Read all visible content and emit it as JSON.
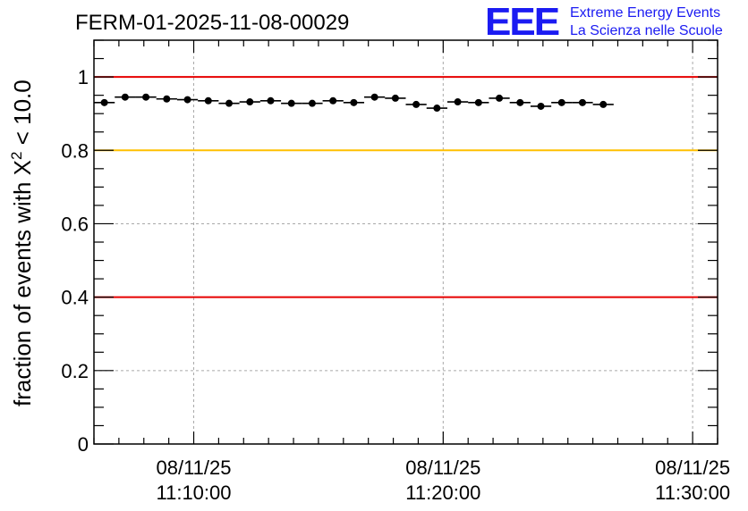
{
  "chart_data": {
    "type": "scatter",
    "title": "FERM-01-2025-11-08-00029",
    "logo": {
      "letters": "EEE",
      "line1": "Extreme Energy Events",
      "line2": "La Scienza nelle Scuole"
    },
    "ylabel_prefix": "fraction of events with X",
    "ylabel_sup": "2",
    "ylabel_suffix": " < 10.0",
    "xlabel": "",
    "ylim": [
      0,
      1.1
    ],
    "xlim": [
      "2025-11-08 11:06:00",
      "2025-11-08 11:31:00"
    ],
    "y_ticks": [
      {
        "value": 0,
        "label": "0"
      },
      {
        "value": 0.2,
        "label": "0.2"
      },
      {
        "value": 0.4,
        "label": "0.4"
      },
      {
        "value": 0.6,
        "label": "0.6"
      },
      {
        "value": 0.8,
        "label": "0.8"
      },
      {
        "value": 1,
        "label": "1"
      }
    ],
    "x_ticks": [
      {
        "value": "2025-11-08 11:10:00",
        "date": "08/11/25",
        "time": "11:10:00"
      },
      {
        "value": "2025-11-08 11:20:00",
        "date": "08/11/25",
        "time": "11:20:00"
      },
      {
        "value": "2025-11-08 11:30:00",
        "date": "08/11/25",
        "time": "11:30:00"
      }
    ],
    "grid": true,
    "reference_lines": [
      {
        "y": 1.0,
        "color": "#e60000"
      },
      {
        "y": 0.8,
        "color": "#ffc000"
      },
      {
        "y": 0.4,
        "color": "#e60000"
      }
    ],
    "bin_width_seconds": 50,
    "points": [
      {
        "x": "2025-11-08 11:06:25",
        "y": 0.93
      },
      {
        "x": "2025-11-08 11:07:15",
        "y": 0.945
      },
      {
        "x": "2025-11-08 11:08:05",
        "y": 0.945
      },
      {
        "x": "2025-11-08 11:08:55",
        "y": 0.94
      },
      {
        "x": "2025-11-08 11:09:45",
        "y": 0.938
      },
      {
        "x": "2025-11-08 11:10:35",
        "y": 0.935
      },
      {
        "x": "2025-11-08 11:11:25",
        "y": 0.928
      },
      {
        "x": "2025-11-08 11:12:15",
        "y": 0.932
      },
      {
        "x": "2025-11-08 11:13:05",
        "y": 0.935
      },
      {
        "x": "2025-11-08 11:13:55",
        "y": 0.928
      },
      {
        "x": "2025-11-08 11:14:45",
        "y": 0.928
      },
      {
        "x": "2025-11-08 11:15:35",
        "y": 0.935
      },
      {
        "x": "2025-11-08 11:16:25",
        "y": 0.93
      },
      {
        "x": "2025-11-08 11:17:15",
        "y": 0.945
      },
      {
        "x": "2025-11-08 11:18:05",
        "y": 0.942
      },
      {
        "x": "2025-11-08 11:18:55",
        "y": 0.925
      },
      {
        "x": "2025-11-08 11:19:45",
        "y": 0.915
      },
      {
        "x": "2025-11-08 11:20:35",
        "y": 0.932
      },
      {
        "x": "2025-11-08 11:21:25",
        "y": 0.93
      },
      {
        "x": "2025-11-08 11:22:15",
        "y": 0.942
      },
      {
        "x": "2025-11-08 11:23:05",
        "y": 0.93
      },
      {
        "x": "2025-11-08 11:23:55",
        "y": 0.92
      },
      {
        "x": "2025-11-08 11:24:45",
        "y": 0.93
      },
      {
        "x": "2025-11-08 11:25:35",
        "y": 0.93
      },
      {
        "x": "2025-11-08 11:26:25",
        "y": 0.925
      }
    ]
  }
}
